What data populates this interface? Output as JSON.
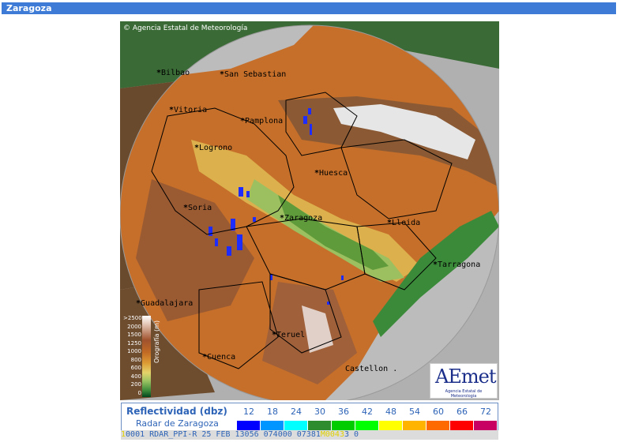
{
  "header": {
    "title": "Zaragoza"
  },
  "map": {
    "copyright": "© Agencia Estatal de Meteorología",
    "cities": [
      {
        "name": "Bilbao",
        "id": "bilbao"
      },
      {
        "name": "San Sebastian",
        "id": "san-sebastian"
      },
      {
        "name": "Vitoria",
        "id": "vitoria"
      },
      {
        "name": "Pamplona",
        "id": "pamplona"
      },
      {
        "name": "Logrono",
        "id": "logrono"
      },
      {
        "name": "Huesca",
        "id": "huesca"
      },
      {
        "name": "Soria",
        "id": "soria"
      },
      {
        "name": "Zaragoza",
        "id": "zaragoza"
      },
      {
        "name": "Lleida",
        "id": "lleida"
      },
      {
        "name": "Tarragona",
        "id": "tarragona"
      },
      {
        "name": "Guadalajara",
        "id": "guadalajara"
      },
      {
        "name": "Teruel",
        "id": "teruel"
      },
      {
        "name": "Cuenca",
        "id": "cuenca"
      },
      {
        "name": "Castellon .",
        "id": "castellon"
      }
    ],
    "orography": {
      "label": "Orografía (m)",
      "ticks": [
        ">2500",
        "2000",
        "1500",
        "1250",
        "1000",
        "800",
        "600",
        "400",
        "200",
        "0"
      ]
    },
    "logo": {
      "brand": "AEmet",
      "subtitle": "Agencia Estatal de Meteorología"
    }
  },
  "legend": {
    "title": "Reflectividad (dbz)",
    "subtitle": "Radar de Zaragoza",
    "scale": [
      {
        "value": "12",
        "color": "#0000ff"
      },
      {
        "value": "18",
        "color": "#0096ff"
      },
      {
        "value": "24",
        "color": "#00ffff"
      },
      {
        "value": "30",
        "color": "#2e8b2e"
      },
      {
        "value": "36",
        "color": "#00cc00"
      },
      {
        "value": "42",
        "color": "#00ff00"
      },
      {
        "value": "48",
        "color": "#ffff00"
      },
      {
        "value": "54",
        "color": "#ffb400"
      },
      {
        "value": "60",
        "color": "#ff6a00"
      },
      {
        "value": "66",
        "color": "#ff0000"
      },
      {
        "value": "72",
        "color": "#c80064"
      }
    ]
  },
  "status": {
    "prefix": "1",
    "text": "0001 RDAR_PPI-R   25 FEB 13056 074000 07381",
    "overlay": "M0043",
    "suffix": "3 0"
  }
}
